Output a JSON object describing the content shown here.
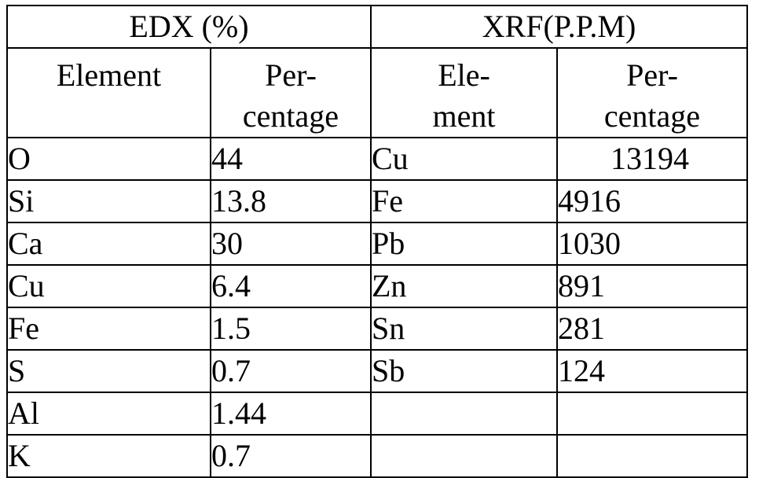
{
  "table": {
    "groups": [
      "EDX (%)",
      "XRF(P.P.M)"
    ],
    "edx": {
      "col_element": [
        "Element"
      ],
      "col_percentage": [
        "Per-",
        "centage"
      ],
      "rows": [
        {
          "element": "O",
          "value": "44"
        },
        {
          "element": "Si",
          "value": "13.8"
        },
        {
          "element": "Ca",
          "value": "30"
        },
        {
          "element": "Cu",
          "value": "6.4"
        },
        {
          "element": "Fe",
          "value": "1.5"
        },
        {
          "element": "S",
          "value": "0.7"
        },
        {
          "element": "Al",
          "value": "1.44"
        },
        {
          "element": "K",
          "value": "0.7"
        }
      ]
    },
    "xrf": {
      "col_element": [
        "Ele-",
        "ment"
      ],
      "col_percentage": [
        "Per-",
        "centage"
      ],
      "rows": [
        {
          "element": "Cu",
          "value": "13194"
        },
        {
          "element": "Fe",
          "value": "4916"
        },
        {
          "element": "Pb",
          "value": "1030"
        },
        {
          "element": "Zn",
          "value": "891"
        },
        {
          "element": "Sn",
          "value": "281"
        },
        {
          "element": "Sb",
          "value": "124"
        }
      ]
    }
  }
}
